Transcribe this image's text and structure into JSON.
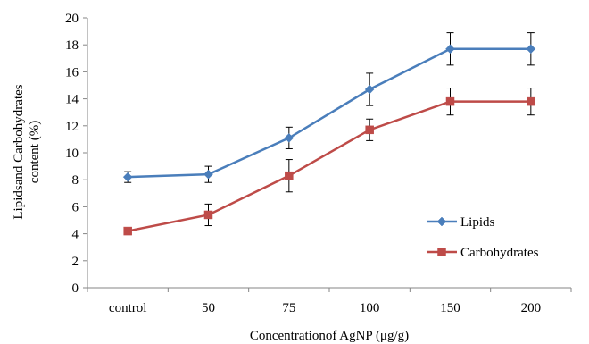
{
  "chart_data": {
    "type": "line",
    "categories": [
      "control",
      "50",
      "75",
      "100",
      "150",
      "200"
    ],
    "series": [
      {
        "name": "Lipids",
        "values": [
          8.2,
          8.4,
          11.1,
          14.7,
          17.7,
          17.7
        ],
        "errors": [
          0.4,
          0.6,
          0.8,
          1.2,
          1.2,
          1.2
        ],
        "color": "#4a7ebb",
        "marker": "diamond"
      },
      {
        "name": "Carbohydrates",
        "values": [
          4.2,
          5.4,
          8.3,
          11.7,
          13.8,
          13.8
        ],
        "errors": [
          0.1,
          0.8,
          1.2,
          0.8,
          1.0,
          1.0
        ],
        "color": "#be4b48",
        "marker": "square"
      }
    ],
    "xlabel": "Concentrationof AgNP (μg/g)",
    "ylabel_line1": "Lipidsand Carbohydrates",
    "ylabel_line2": "content (%)",
    "ylim": [
      0,
      20
    ],
    "yticks": [
      0,
      2,
      4,
      6,
      8,
      10,
      12,
      14,
      16,
      18,
      20
    ],
    "grid": false,
    "legend_position": "right"
  }
}
